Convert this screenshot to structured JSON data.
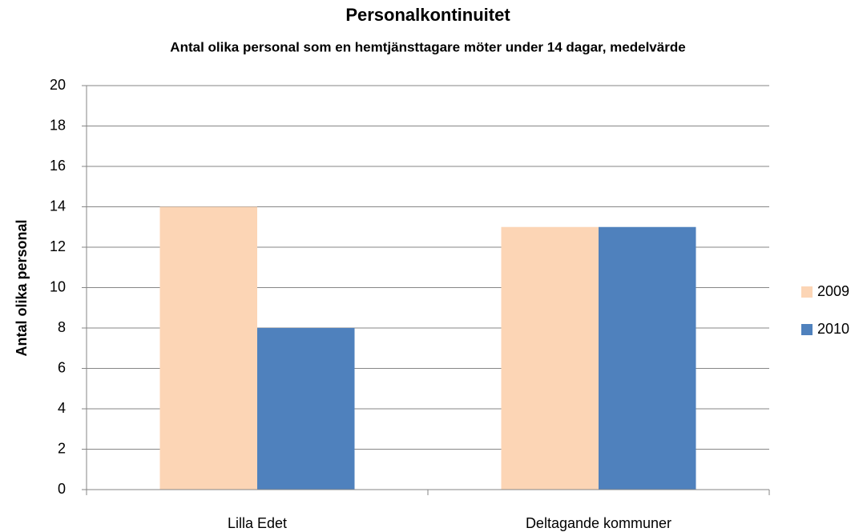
{
  "chart_data": {
    "type": "bar",
    "title": "Personalkontinuitet",
    "subtitle": "Antal olika personal som en hemtjänsttagare möter under 14 dagar, medelvärde",
    "y_label": "Antal olika personal",
    "categories": [
      "Lilla Edet",
      "Deltagande kommuner"
    ],
    "series": [
      {
        "name": "2009",
        "color": "#fcd5b5",
        "values": [
          14,
          13
        ]
      },
      {
        "name": "2010",
        "color": "#4f81bd",
        "values": [
          8,
          13
        ]
      }
    ],
    "ylim": [
      0,
      20
    ],
    "yticks": [
      0,
      2,
      4,
      6,
      8,
      10,
      12,
      14,
      16,
      18,
      20
    ],
    "grid": true,
    "legend": "right"
  }
}
